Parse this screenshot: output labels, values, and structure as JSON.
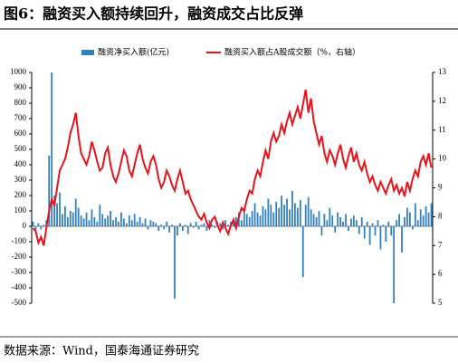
{
  "chart_data": {
    "type": "bar-line",
    "title": "图6：融资买入额持续回升，融资成交占比反弹",
    "source": "数据来源：Wind，国泰海通证券研究",
    "ylim": [
      -500,
      1000
    ],
    "yticks": [
      -500,
      -400,
      -300,
      -200,
      -100,
      0,
      100,
      200,
      300,
      400,
      500,
      600,
      700,
      800,
      900,
      1000
    ],
    "y2lim": [
      5,
      13
    ],
    "y2ticks": [
      5,
      6,
      7,
      8,
      9,
      10,
      11,
      12,
      13
    ],
    "series": [
      {
        "name": "融资净买入额(亿元)",
        "type": "bar",
        "color": "#2f7fc1",
        "values": [
          30,
          -40,
          20,
          -20,
          10,
          40,
          460,
          1000,
          200,
          150,
          220,
          80,
          130,
          60,
          100,
          90,
          180,
          120,
          70,
          50,
          90,
          40,
          110,
          60,
          30,
          140,
          80,
          50,
          70,
          100,
          40,
          60,
          30,
          90,
          50,
          20,
          70,
          40,
          80,
          30,
          60,
          20,
          50,
          -20,
          40,
          30,
          20,
          -30,
          10,
          -20,
          30,
          -40,
          10,
          -470,
          -60,
          20,
          -30,
          10,
          -50,
          20,
          -10,
          30,
          -20,
          10,
          20,
          -30,
          40,
          10,
          -10,
          30,
          20,
          -20,
          40,
          10,
          30,
          50,
          60,
          90,
          40,
          120,
          80,
          60,
          100,
          150,
          90,
          70,
          130,
          110,
          180,
          140,
          90,
          160,
          120,
          200,
          140,
          180,
          110,
          230,
          150,
          120,
          170,
          -330,
          140,
          190,
          110,
          80,
          60,
          100,
          -60,
          80,
          40,
          120,
          70,
          -40,
          90,
          60,
          30,
          80,
          -30,
          50,
          70,
          40,
          -50,
          60,
          -80,
          30,
          -120,
          20,
          -60,
          40,
          -150,
          10,
          -100,
          30,
          -60,
          -500,
          40,
          80,
          -170,
          60,
          120,
          90,
          -20,
          150,
          40,
          110,
          70,
          130,
          90,
          150
        ]
      },
      {
        "name": "融资买入额占A股成交额（%，右轴）",
        "type": "line",
        "axis": "y2",
        "color": "#e8141b",
        "values": [
          7.6,
          7.5,
          7.1,
          7.3,
          7.0,
          7.6,
          8.2,
          8.6,
          8.4,
          9.0,
          9.6,
          9.8,
          10.0,
          10.4,
          10.9,
          11.2,
          11.6,
          10.8,
          10.2,
          10.0,
          9.8,
          10.1,
          10.6,
          10.3,
          9.9,
          9.6,
          9.7,
          10.2,
          10.4,
          9.8,
          9.4,
          9.2,
          9.5,
          9.9,
          10.3,
          10.1,
          9.6,
          9.4,
          9.8,
          10.2,
          10.5,
          10.0,
          9.7,
          9.5,
          9.9,
          10.1,
          9.8,
          9.3,
          9.0,
          9.2,
          9.6,
          9.4,
          9.1,
          8.9,
          9.3,
          9.6,
          9.2,
          8.8,
          8.9,
          8.6,
          8.4,
          8.2,
          8.0,
          7.9,
          8.1,
          7.8,
          7.6,
          7.9,
          8.0,
          7.7,
          7.5,
          7.8,
          7.6,
          7.4,
          7.7,
          7.9,
          7.6,
          8.0,
          8.3,
          8.2,
          8.6,
          8.9,
          8.8,
          9.3,
          9.6,
          9.4,
          9.9,
          10.3,
          10.0,
          10.6,
          10.9,
          10.6,
          10.8,
          11.2,
          10.9,
          11.3,
          11.6,
          11.2,
          11.5,
          11.8,
          11.4,
          11.9,
          12.4,
          11.6,
          12.1,
          11.3,
          10.9,
          10.5,
          10.8,
          10.2,
          9.9,
          10.3,
          10.1,
          9.8,
          10.2,
          10.5,
          10.0,
          9.7,
          10.1,
          10.4,
          9.9,
          10.2,
          9.8,
          9.6,
          9.9,
          9.5,
          9.2,
          9.4,
          9.1,
          8.9,
          9.2,
          9.0,
          8.8,
          9.1,
          9.3,
          8.9,
          9.1,
          8.8,
          9.0,
          8.7,
          9.2,
          8.9,
          9.3,
          9.6,
          9.4,
          9.9,
          10.1,
          9.8,
          10.2,
          9.7
        ]
      }
    ]
  }
}
